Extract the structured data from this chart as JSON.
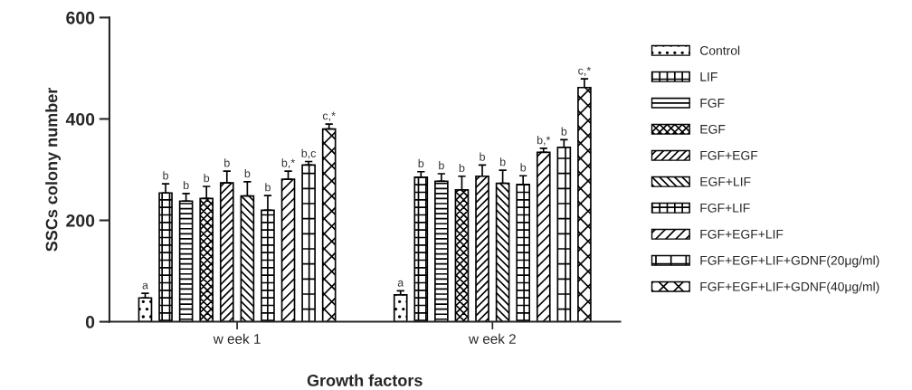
{
  "chart_data": {
    "type": "bar",
    "xlabel": "Growth factors",
    "ylabel": "SSCs colony number",
    "categories": [
      "w eek 1",
      "w eek 2"
    ],
    "ylim": [
      0,
      600
    ],
    "yticks": [
      0,
      200,
      400,
      600
    ],
    "grid": false,
    "legend": "right",
    "series": [
      {
        "name": "Control",
        "color": "#000000",
        "values": [
          47,
          53
        ],
        "errors": [
          9,
          8
        ],
        "value_labels": [
          "a",
          "a"
        ]
      },
      {
        "name": "LIF",
        "color": "#000000",
        "values": [
          254,
          285
        ],
        "errors": [
          18,
          11
        ],
        "value_labels": [
          "b",
          "b"
        ]
      },
      {
        "name": "FGF",
        "color": "#000000",
        "values": [
          238,
          277
        ],
        "errors": [
          15,
          15
        ],
        "value_labels": [
          "b",
          "b"
        ]
      },
      {
        "name": "EGF",
        "color": "#000000",
        "values": [
          243,
          260
        ],
        "errors": [
          24,
          27
        ],
        "value_labels": [
          "b",
          "b"
        ]
      },
      {
        "name": "FGF+EGF",
        "color": "#000000",
        "values": [
          274,
          287
        ],
        "errors": [
          23,
          22
        ],
        "value_labels": [
          "b",
          "b"
        ]
      },
      {
        "name": "EGF+LIF",
        "color": "#000000",
        "values": [
          248,
          273
        ],
        "errors": [
          28,
          26
        ],
        "value_labels": [
          "b",
          "b"
        ]
      },
      {
        "name": "FGF+LIF",
        "color": "#000000",
        "values": [
          220,
          271
        ],
        "errors": [
          29,
          17
        ],
        "value_labels": [
          "b",
          "b"
        ]
      },
      {
        "name": "FGF+EGF+LIF",
        "color": "#000000",
        "values": [
          281,
          334
        ],
        "errors": [
          16,
          8
        ],
        "value_labels": [
          "b,*",
          "b,*"
        ]
      },
      {
        "name": "FGF+EGF+LIF+GDNF(20μg/ml)",
        "color": "#000000",
        "values": [
          309,
          344
        ],
        "errors": [
          7,
          15
        ],
        "value_labels": [
          "b,c",
          "b"
        ]
      },
      {
        "name": "FGF+EGF+LIF+GDNF(40μg/ml)",
        "color": "#000000",
        "values": [
          380,
          462
        ],
        "errors": [
          10,
          17
        ],
        "value_labels": [
          "c,*",
          "c,*"
        ]
      }
    ]
  }
}
